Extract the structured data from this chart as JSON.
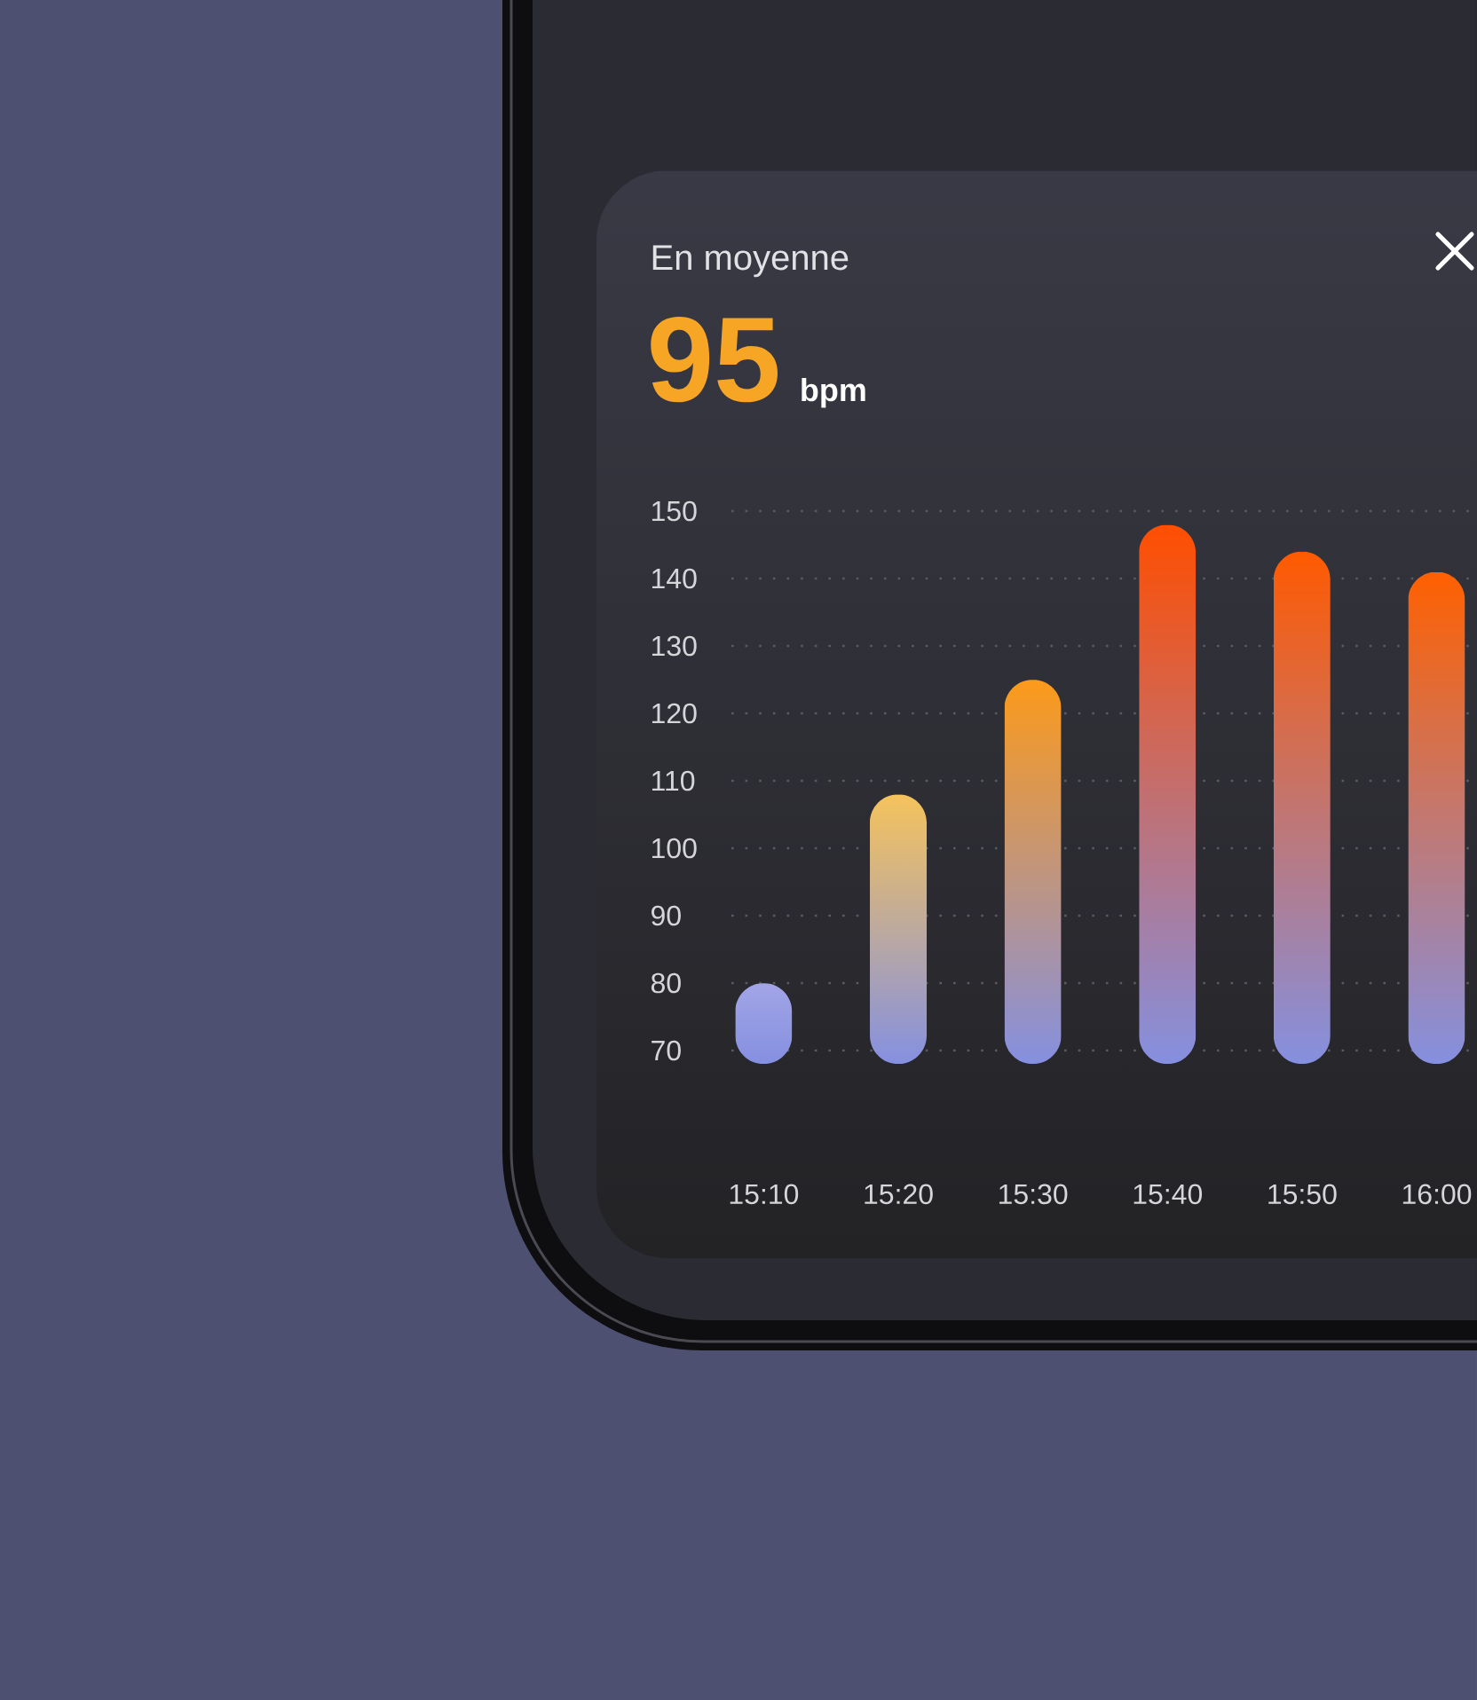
{
  "chart_data": {
    "type": "bar",
    "title": "En moyenne",
    "subtitle": "95",
    "annotations": [
      "bpm"
    ],
    "categories": [
      "15:10",
      "15:20",
      "15:30",
      "15:40",
      "15:50",
      "16:00"
    ],
    "values": [
      80,
      108,
      125,
      148,
      144,
      141
    ],
    "colors": [
      "#a3a5e6",
      "#f5c35c",
      "#fc9a1a",
      "#ff4e00",
      "#ff5a00",
      "#ff6000"
    ],
    "ylim": [
      68,
      150
    ],
    "yticks": [
      70,
      80,
      90,
      100,
      110,
      120,
      130,
      140,
      150
    ],
    "grid": "y"
  }
}
